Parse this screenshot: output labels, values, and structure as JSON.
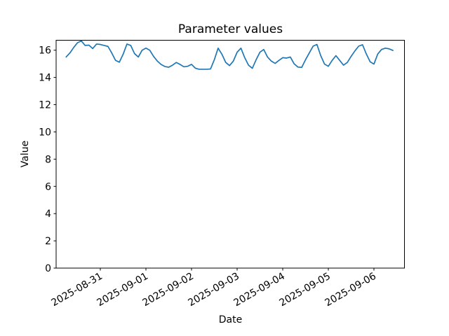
{
  "figure": {
    "title": "Parameter values"
  },
  "chart_data": {
    "type": "line",
    "title": "Parameter values",
    "xlabel": "Date",
    "ylabel": "Value",
    "legend": "none",
    "grid": false,
    "line_color": "#1f77b4",
    "axes_color": "#000000",
    "background_color": "#ffffff",
    "ylim": [
      0,
      16.73
    ],
    "yticks": [
      0,
      2,
      4,
      6,
      8,
      10,
      12,
      14,
      16
    ],
    "xticks": [
      "2025-08-31",
      "2025-09-01",
      "2025-09-02",
      "2025-09-03",
      "2025-09-04",
      "2025-09-05",
      "2025-09-06"
    ],
    "xtick_rotation_deg": 30,
    "x_start": "2025-08-30 06:00",
    "x_step_hours": 2,
    "values": [
      15.5,
      15.8,
      16.2,
      16.55,
      16.68,
      16.35,
      16.37,
      16.12,
      16.45,
      16.42,
      16.35,
      16.28,
      15.8,
      15.25,
      15.12,
      15.7,
      16.45,
      16.35,
      15.75,
      15.5,
      16.0,
      16.15,
      16.0,
      15.55,
      15.2,
      14.95,
      14.8,
      14.75,
      14.9,
      15.1,
      14.95,
      14.78,
      14.82,
      14.96,
      14.68,
      14.6,
      14.6,
      14.6,
      14.62,
      15.3,
      16.15,
      15.7,
      15.1,
      14.87,
      15.2,
      15.85,
      16.15,
      15.45,
      14.9,
      14.67,
      15.3,
      15.85,
      16.05,
      15.5,
      15.2,
      15.03,
      15.25,
      15.45,
      15.42,
      15.5,
      15.0,
      14.76,
      14.74,
      15.3,
      15.8,
      16.3,
      16.42,
      15.6,
      14.98,
      14.82,
      15.25,
      15.6,
      15.25,
      14.9,
      15.1,
      15.55,
      15.95,
      16.3,
      16.4,
      15.72,
      15.15,
      14.98,
      15.72,
      16.05,
      16.15,
      16.1,
      15.98
    ]
  }
}
